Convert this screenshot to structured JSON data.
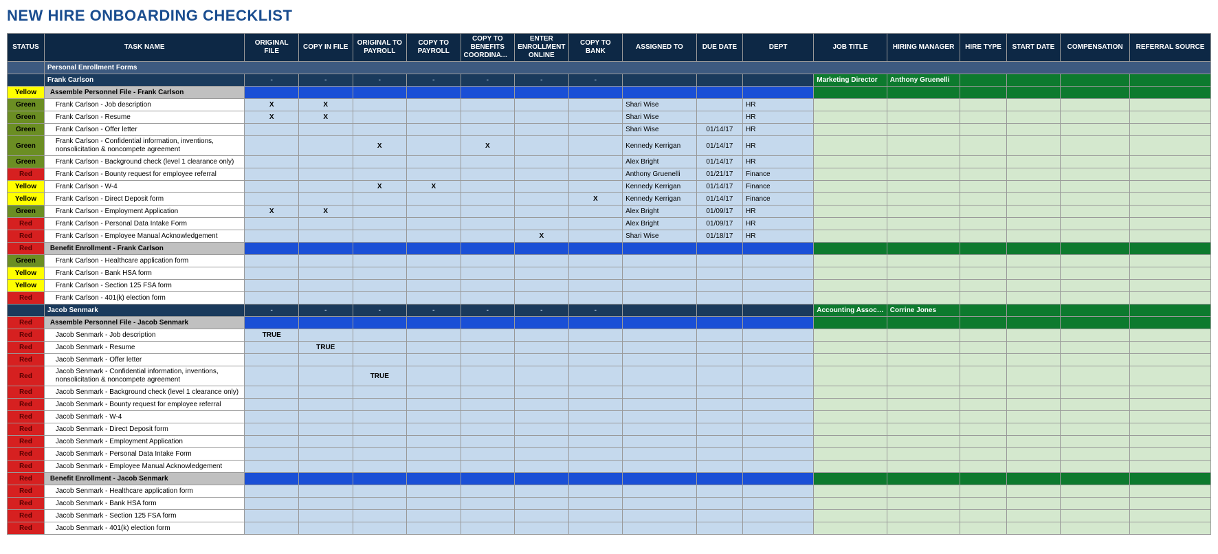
{
  "title": "NEW HIRE ONBOARDING CHECKLIST",
  "columns": [
    "STATUS",
    "TASK NAME",
    "ORIGINAL FILE",
    "COPY IN FILE",
    "ORIGINAL TO PAYROLL",
    "COPY TO PAYROLL",
    "COPY TO BENEFITS COORDINATOR",
    "ENTER ENROLLMENT ONLINE",
    "COPY TO BANK",
    "ASSIGNED TO",
    "DUE DATE",
    "DEPT",
    "JOB TITLE",
    "HIRING MANAGER",
    "HIRE TYPE",
    "START DATE",
    "COMPENSATION",
    "REFERRAL SOURCE"
  ],
  "rows": [
    {
      "type": "section",
      "task": "Personal Enrollment Forms"
    },
    {
      "type": "person",
      "task": "Frank Carlson",
      "job": "Marketing Director",
      "mgr": "Anthony Gruenelli"
    },
    {
      "type": "group",
      "status": "Yellow",
      "task": "Assemble Personnel File - Frank Carlson"
    },
    {
      "type": "data",
      "status": "Green",
      "task": "Frank Carlson - Job description",
      "c": [
        "X",
        "X",
        "",
        "",
        "",
        "",
        ""
      ],
      "assigned": "Shari Wise",
      "due": "",
      "dept": "HR"
    },
    {
      "type": "data",
      "status": "Green",
      "task": "Frank Carlson - Resume",
      "c": [
        "X",
        "X",
        "",
        "",
        "",
        "",
        ""
      ],
      "assigned": "Shari Wise",
      "due": "",
      "dept": "HR"
    },
    {
      "type": "data",
      "status": "Green",
      "task": "Frank Carlson - Offer letter",
      "c": [
        "",
        "",
        "",
        "",
        "",
        "",
        ""
      ],
      "assigned": "Shari Wise",
      "due": "01/14/17",
      "dept": "HR"
    },
    {
      "type": "data",
      "status": "Green",
      "task": "Frank Carlson - Confidential information, inventions, nonsolicitation & noncompete agreement",
      "c": [
        "",
        "",
        "X",
        "",
        "X",
        "",
        ""
      ],
      "assigned": "Kennedy Kerrigan",
      "due": "01/14/17",
      "dept": "HR"
    },
    {
      "type": "data",
      "status": "Green",
      "task": "Frank Carlson - Background check (level 1 clearance only)",
      "c": [
        "",
        "",
        "",
        "",
        "",
        "",
        ""
      ],
      "assigned": "Alex Bright",
      "due": "01/14/17",
      "dept": "HR"
    },
    {
      "type": "data",
      "status": "Red",
      "task": "Frank Carlson - Bounty request for employee referral",
      "c": [
        "",
        "",
        "",
        "",
        "",
        "",
        ""
      ],
      "assigned": "Anthony Gruenelli",
      "due": "01/21/17",
      "dept": "Finance"
    },
    {
      "type": "data",
      "status": "Yellow",
      "task": "Frank Carlson - W-4",
      "c": [
        "",
        "",
        "X",
        "X",
        "",
        "",
        ""
      ],
      "assigned": "Kennedy Kerrigan",
      "due": "01/14/17",
      "dept": "Finance"
    },
    {
      "type": "data",
      "status": "Yellow",
      "task": "Frank Carlson - Direct Deposit form",
      "c": [
        "",
        "",
        "",
        "",
        "",
        "",
        "X"
      ],
      "assigned": "Kennedy Kerrigan",
      "due": "01/14/17",
      "dept": "Finance"
    },
    {
      "type": "data",
      "status": "Green",
      "task": "Frank Carlson - Employment Application",
      "c": [
        "X",
        "X",
        "",
        "",
        "",
        "",
        ""
      ],
      "assigned": "Alex Bright",
      "due": "01/09/17",
      "dept": "HR"
    },
    {
      "type": "data",
      "status": "Red",
      "task": "Frank Carlson - Personal Data Intake Form",
      "c": [
        "",
        "",
        "",
        "",
        "",
        "",
        ""
      ],
      "assigned": "Alex Bright",
      "due": "01/09/17",
      "dept": "HR"
    },
    {
      "type": "data",
      "status": "Red",
      "task": "Frank Carlson - Employee Manual Acknowledgement",
      "c": [
        "",
        "",
        "",
        "",
        "",
        "X",
        ""
      ],
      "assigned": "Shari Wise",
      "due": "01/18/17",
      "dept": "HR"
    },
    {
      "type": "group",
      "status": "Red",
      "task": "Benefit Enrollment - Frank Carlson"
    },
    {
      "type": "data",
      "status": "Green",
      "task": "Frank Carlson - Healthcare application form",
      "c": [
        "",
        "",
        "",
        "",
        "",
        "",
        ""
      ],
      "assigned": "",
      "due": "",
      "dept": ""
    },
    {
      "type": "data",
      "status": "Yellow",
      "task": "Frank Carlson - Bank HSA form",
      "c": [
        "",
        "",
        "",
        "",
        "",
        "",
        ""
      ],
      "assigned": "",
      "due": "",
      "dept": ""
    },
    {
      "type": "data",
      "status": "Yellow",
      "task": "Frank Carlson - Section 125 FSA form",
      "c": [
        "",
        "",
        "",
        "",
        "",
        "",
        ""
      ],
      "assigned": "",
      "due": "",
      "dept": ""
    },
    {
      "type": "data",
      "status": "Red",
      "task": "Frank Carlson - 401(k) election form",
      "c": [
        "",
        "",
        "",
        "",
        "",
        "",
        ""
      ],
      "assigned": "",
      "due": "",
      "dept": ""
    },
    {
      "type": "person",
      "task": "Jacob Senmark",
      "job": "Accounting Associate",
      "mgr": "Corrine Jones"
    },
    {
      "type": "group",
      "status": "Red",
      "task": "Assemble Personnel File - Jacob Senmark"
    },
    {
      "type": "data",
      "status": "Red",
      "task": "Jacob Senmark - Job description",
      "c": [
        "TRUE",
        "",
        "",
        "",
        "",
        "",
        ""
      ],
      "assigned": "",
      "due": "",
      "dept": ""
    },
    {
      "type": "data",
      "status": "Red",
      "task": "Jacob Senmark - Resume",
      "c": [
        "",
        "TRUE",
        "",
        "",
        "",
        "",
        ""
      ],
      "assigned": "",
      "due": "",
      "dept": ""
    },
    {
      "type": "data",
      "status": "Red",
      "task": "Jacob Senmark - Offer letter",
      "c": [
        "",
        "",
        "",
        "",
        "",
        "",
        ""
      ],
      "assigned": "",
      "due": "",
      "dept": ""
    },
    {
      "type": "data",
      "status": "Red",
      "task": "Jacob Senmark - Confidential information, inventions, nonsolicitation & noncompete agreement",
      "c": [
        "",
        "",
        "TRUE",
        "",
        "",
        "",
        ""
      ],
      "assigned": "",
      "due": "",
      "dept": ""
    },
    {
      "type": "data",
      "status": "Red",
      "task": "Jacob Senmark - Background check (level 1 clearance only)",
      "c": [
        "",
        "",
        "",
        "",
        "",
        "",
        ""
      ],
      "assigned": "",
      "due": "",
      "dept": ""
    },
    {
      "type": "data",
      "status": "Red",
      "task": "Jacob Senmark - Bounty request for employee referral",
      "c": [
        "",
        "",
        "",
        "",
        "",
        "",
        ""
      ],
      "assigned": "",
      "due": "",
      "dept": ""
    },
    {
      "type": "data",
      "status": "Red",
      "task": "Jacob Senmark - W-4",
      "c": [
        "",
        "",
        "",
        "",
        "",
        "",
        ""
      ],
      "assigned": "",
      "due": "",
      "dept": ""
    },
    {
      "type": "data",
      "status": "Red",
      "task": "Jacob Senmark - Direct Deposit form",
      "c": [
        "",
        "",
        "",
        "",
        "",
        "",
        ""
      ],
      "assigned": "",
      "due": "",
      "dept": ""
    },
    {
      "type": "data",
      "status": "Red",
      "task": "Jacob Senmark - Employment Application",
      "c": [
        "",
        "",
        "",
        "",
        "",
        "",
        ""
      ],
      "assigned": "",
      "due": "",
      "dept": ""
    },
    {
      "type": "data",
      "status": "Red",
      "task": "Jacob Senmark - Personal Data Intake Form",
      "c": [
        "",
        "",
        "",
        "",
        "",
        "",
        ""
      ],
      "assigned": "",
      "due": "",
      "dept": ""
    },
    {
      "type": "data",
      "status": "Red",
      "task": "Jacob Senmark - Employee Manual Acknowledgement",
      "c": [
        "",
        "",
        "",
        "",
        "",
        "",
        ""
      ],
      "assigned": "",
      "due": "",
      "dept": ""
    },
    {
      "type": "group",
      "status": "Red",
      "task": "Benefit Enrollment - Jacob Senmark"
    },
    {
      "type": "data",
      "status": "Red",
      "task": "Jacob Senmark - Healthcare application form",
      "c": [
        "",
        "",
        "",
        "",
        "",
        "",
        ""
      ],
      "assigned": "",
      "due": "",
      "dept": ""
    },
    {
      "type": "data",
      "status": "Red",
      "task": "Jacob Senmark - Bank HSA form",
      "c": [
        "",
        "",
        "",
        "",
        "",
        "",
        ""
      ],
      "assigned": "",
      "due": "",
      "dept": ""
    },
    {
      "type": "data",
      "status": "Red",
      "task": "Jacob Senmark - Section 125 FSA form",
      "c": [
        "",
        "",
        "",
        "",
        "",
        "",
        ""
      ],
      "assigned": "",
      "due": "",
      "dept": ""
    },
    {
      "type": "data",
      "status": "Red",
      "task": "Jacob Senmark - 401(k) election form",
      "c": [
        "",
        "",
        "",
        "",
        "",
        "",
        ""
      ],
      "assigned": "",
      "due": "",
      "dept": ""
    }
  ]
}
